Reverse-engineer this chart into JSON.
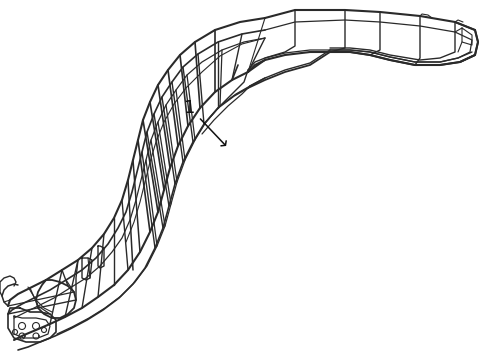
{
  "background_color": "#ffffff",
  "line_color": "#2a2a2a",
  "label_text": "1",
  "figsize": [
    4.9,
    3.6
  ],
  "dpi": 100
}
